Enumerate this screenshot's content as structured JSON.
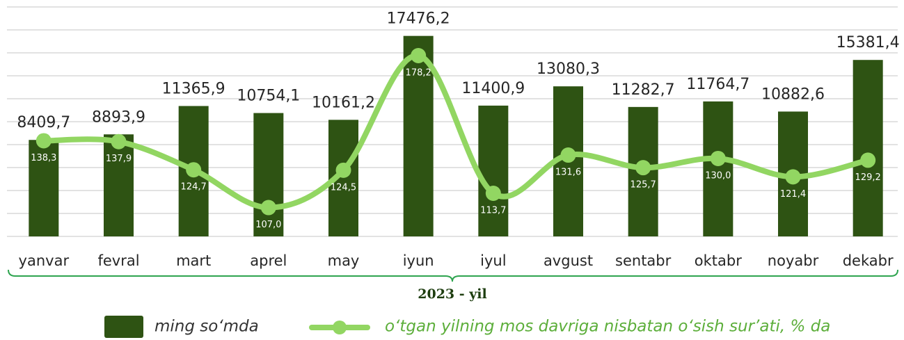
{
  "chart_data": {
    "type": "bar_line",
    "x_label": "2023 - yil",
    "categories": [
      "yanvar",
      "fevral",
      "mart",
      "aprel",
      "may",
      "iyun",
      "iyul",
      "avgust",
      "sentabr",
      "oktabr",
      "noyabr",
      "dekabr"
    ],
    "series": [
      {
        "name": "ming so‘mda",
        "type": "bar",
        "color": "#2e5313",
        "values": [
          8409.7,
          8893.9,
          11365.9,
          10754.1,
          10161.2,
          17476.2,
          11400.9,
          13080.3,
          11282.7,
          11764.7,
          10882.6,
          15381.4
        ],
        "value_labels": [
          "8409,7",
          "8893,9",
          "11365,9",
          "10754,1",
          "10161,2",
          "17476,2",
          "11400,9",
          "13080,3",
          "11282,7",
          "11764,7",
          "10882,6",
          "15381,4"
        ]
      },
      {
        "name": "o‘tgan yilning mos davriga nisbatan o‘sish sur’ati, % da",
        "type": "line",
        "axis": "y2",
        "color": "#92d662",
        "values": [
          138.3,
          137.9,
          124.7,
          107.0,
          124.5,
          178.2,
          113.7,
          131.6,
          125.7,
          130.0,
          121.4,
          129.2
        ],
        "value_labels": [
          "138,3",
          "137,9",
          "124,7",
          "107,0",
          "124,5",
          "178,2",
          "113,7",
          "131,6",
          "125,7",
          "130,0",
          "121,4",
          "129,2"
        ]
      }
    ],
    "ylim": [
      0,
      20000
    ],
    "yticks": [
      0,
      2000,
      4000,
      6000,
      8000,
      10000,
      12000,
      14000,
      16000,
      18000,
      20000
    ],
    "y2lim": [
      93.5,
      201
    ],
    "grid": true,
    "legend": "bottom"
  }
}
